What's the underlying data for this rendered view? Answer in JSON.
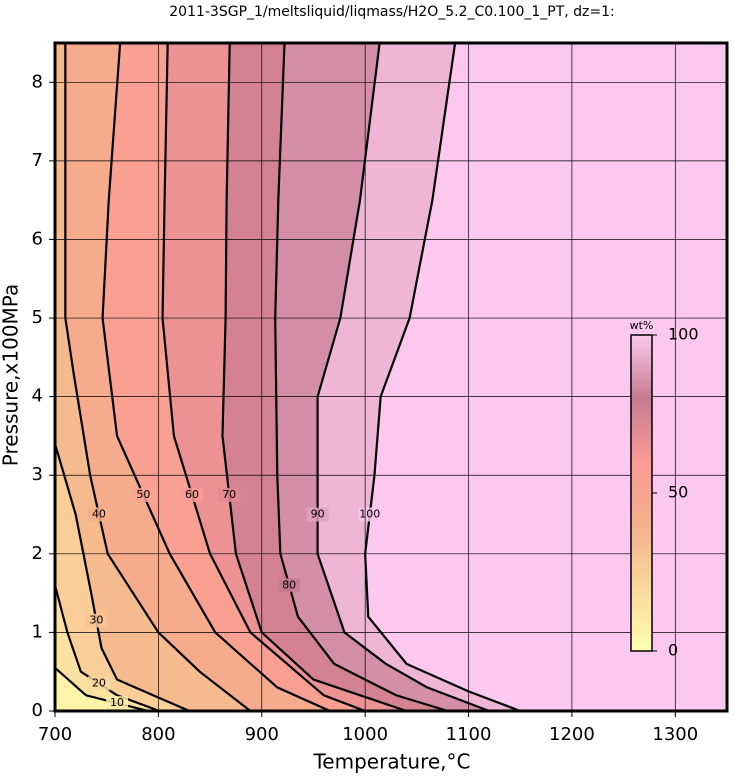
{
  "chart_data": {
    "type": "contour",
    "title": "2011-3SGP_1/meltsliquid/liqmass/H2O_5.2_C0.100_1_PT, dz=1:",
    "x_label": "Temperature,°C",
    "y_label": "Pressure,x100MPa",
    "xlim": [
      700,
      1350
    ],
    "ylim": [
      0,
      8.5
    ],
    "xticks": [
      700,
      800,
      900,
      1000,
      1100,
      1200,
      1300
    ],
    "yticks": [
      0,
      1,
      2,
      3,
      4,
      5,
      6,
      7,
      8
    ],
    "grid": true,
    "background_color": "#fcc8ef",
    "line_color": "#000000",
    "contours": [
      {
        "level": 100,
        "x": [
          1087,
          1065,
          1043,
          1015,
          1009,
          1000,
          1003,
          1040,
          1100,
          1150
        ],
        "y": [
          8.5,
          6.5,
          5,
          4,
          3,
          2,
          1.2,
          0.6,
          0.25,
          0
        ]
      },
      {
        "level": 90,
        "x": [
          1014,
          995,
          976,
          954,
          954,
          954,
          980,
          1020,
          1060,
          1120
        ],
        "y": [
          8.5,
          6.5,
          5,
          4,
          3,
          2,
          1,
          0.6,
          0.3,
          0
        ]
      },
      {
        "level": 80,
        "x": [
          922,
          916,
          913,
          915,
          918,
          935,
          970,
          1030,
          1080
        ],
        "y": [
          8.5,
          6.5,
          5,
          3,
          2,
          1.2,
          0.6,
          0.2,
          0
        ]
      },
      {
        "level": 70,
        "x": [
          869,
          866,
          865,
          862,
          875,
          900,
          950,
          1040
        ],
        "y": [
          8.5,
          6.5,
          5,
          3.5,
          2,
          1,
          0.4,
          0
        ]
      },
      {
        "level": 60,
        "x": [
          809,
          806,
          804,
          815,
          850,
          889,
          960,
          1000
        ],
        "y": [
          8.5,
          6.5,
          5,
          3.5,
          2,
          1,
          0.2,
          0
        ]
      },
      {
        "level": 50,
        "x": [
          763,
          752,
          746,
          760,
          811,
          855,
          915,
          966
        ],
        "y": [
          8.5,
          6.5,
          5,
          3.5,
          2,
          1,
          0.3,
          0
        ]
      },
      {
        "level": 40,
        "x": [
          710,
          710,
          718,
          734,
          751,
          800,
          840,
          889
        ],
        "y": [
          8.5,
          5,
          4.3,
          3,
          2,
          1,
          0.5,
          0
        ]
      },
      {
        "level": 30,
        "x": [
          700,
          720,
          735,
          745,
          760,
          830
        ],
        "y": [
          3.4,
          2.5,
          1.5,
          0.8,
          0.4,
          0
        ]
      },
      {
        "level": 20,
        "x": [
          700,
          712,
          725,
          760,
          801
        ],
        "y": [
          1.6,
          1,
          0.5,
          0.2,
          0
        ]
      },
      {
        "level": 10,
        "x": [
          700,
          730,
          790
        ],
        "y": [
          0.55,
          0.2,
          0
        ]
      }
    ],
    "colorbar": {
      "label": "wt%",
      "lim": [
        0,
        100
      ],
      "ticks": [
        0,
        50,
        100
      ],
      "stops": [
        {
          "at": 0,
          "color": "#ffffb0"
        },
        {
          "at": 40,
          "color": "#f5b08a"
        },
        {
          "at": 60,
          "color": "#fa9a95"
        },
        {
          "at": 80,
          "color": "#c77a90"
        },
        {
          "at": 100,
          "color": "#fcc8ef"
        }
      ]
    }
  }
}
